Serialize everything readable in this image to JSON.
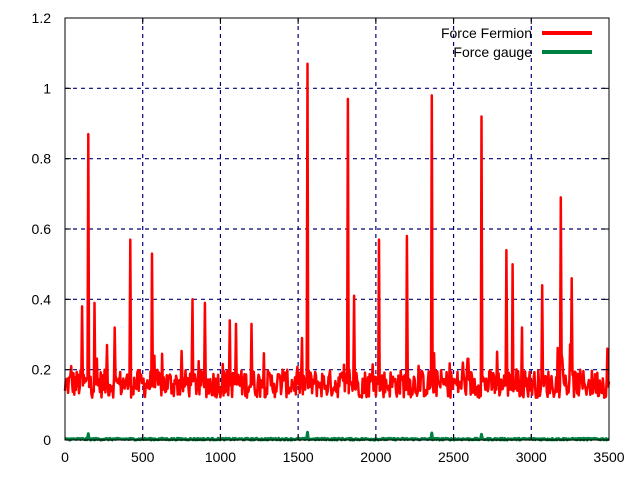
{
  "chart_data": {
    "type": "line",
    "title": "",
    "xlabel": "",
    "ylabel": "",
    "xlim": [
      0,
      3500
    ],
    "ylim": [
      0,
      1.2
    ],
    "grid": true,
    "legend_position": "top-right",
    "x_ticks": [
      0,
      500,
      1000,
      1500,
      2000,
      2500,
      3000,
      3500
    ],
    "y_ticks": [
      0,
      0.2,
      0.4,
      0.6,
      0.8,
      1,
      1.2
    ],
    "x_tick_labels": [
      "0",
      "500",
      "1000",
      "1500",
      "2000",
      "2500",
      "3000",
      "3500"
    ],
    "y_tick_labels": [
      "0",
      "0.2",
      "0.4",
      "0.6",
      "0.8",
      "1",
      "1.2"
    ],
    "series": [
      {
        "name": "Force Fermion",
        "color": "#ff0000",
        "baseline_min": 0.12,
        "baseline_max": 0.2,
        "x": [
          0,
          40,
          110,
          150,
          190,
          270,
          320,
          420,
          560,
          820,
          900,
          1060,
          1100,
          1200,
          1400,
          1560,
          1820,
          1860,
          2020,
          2200,
          2360,
          2560,
          2680,
          2840,
          2880,
          2940,
          3070,
          3190,
          3260,
          3490
        ],
        "y": [
          0.14,
          0.21,
          0.38,
          0.87,
          0.39,
          0.27,
          0.32,
          0.57,
          0.53,
          0.4,
          0.39,
          0.34,
          0.33,
          0.33,
          0.2,
          1.07,
          0.97,
          0.41,
          0.57,
          0.58,
          0.98,
          0.22,
          0.92,
          0.54,
          0.5,
          0.32,
          0.44,
          0.69,
          0.46,
          0.26
        ]
      },
      {
        "name": "Force gauge",
        "color": "#008040",
        "baseline_min": 0.0,
        "baseline_max": 0.005,
        "x": [
          150,
          1560,
          2360,
          2680
        ],
        "y": [
          0.018,
          0.022,
          0.02,
          0.016
        ]
      }
    ]
  }
}
